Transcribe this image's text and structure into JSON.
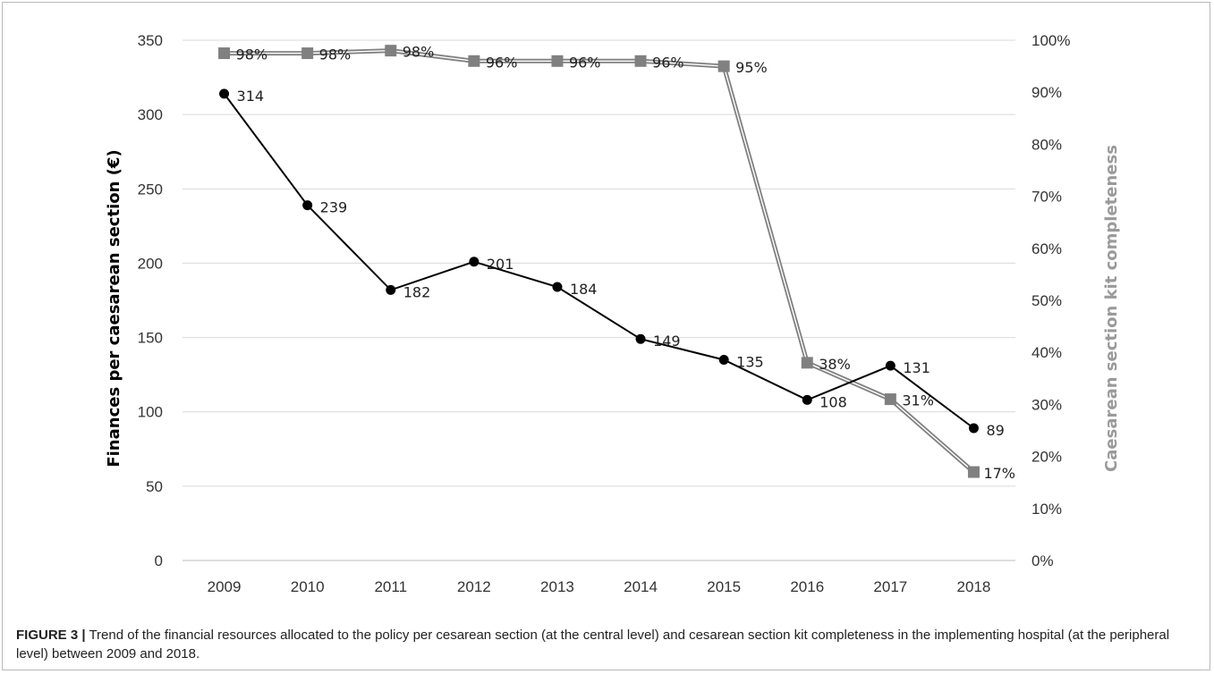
{
  "chart_data": {
    "type": "line",
    "categories": [
      "2009",
      "2010",
      "2011",
      "2012",
      "2013",
      "2014",
      "2015",
      "2016",
      "2017",
      "2018"
    ],
    "y_left": {
      "label": "Finances per caesarean section  (€)",
      "range": [
        0,
        350
      ],
      "ticks": [
        0,
        50,
        100,
        150,
        200,
        250,
        300,
        350
      ]
    },
    "y_right": {
      "label": "Caesarean section kit completeness",
      "range": [
        0,
        100
      ],
      "ticks": [
        0,
        10,
        20,
        30,
        40,
        50,
        60,
        70,
        80,
        90,
        100
      ],
      "tick_suffix": "%"
    },
    "grid": true,
    "series": [
      {
        "axis": "left",
        "color": "#000000",
        "marker": "circle",
        "values": [
          314,
          239,
          182,
          201,
          184,
          149,
          135,
          108,
          131,
          89
        ],
        "labels": [
          "314",
          "239",
          "182",
          "201",
          "184",
          "149",
          "135",
          "108",
          "131",
          "89"
        ]
      },
      {
        "axis": "right",
        "color": "#808080",
        "marker": "square",
        "values": [
          97.5,
          97.5,
          98,
          96,
          96,
          96,
          95,
          38,
          31,
          17
        ],
        "labels": [
          "98%",
          "98%",
          "98%",
          "96%",
          "96%",
          "96%",
          "95%",
          "38%",
          "31%",
          "17%"
        ]
      }
    ]
  },
  "caption": {
    "label": "FIGURE 3 |",
    "text": " Trend of the financial resources allocated to the policy per cesarean section (at the central level) and cesarean section kit completeness in the implementing hospital (at the peripheral level) between 2009 and 2018."
  }
}
